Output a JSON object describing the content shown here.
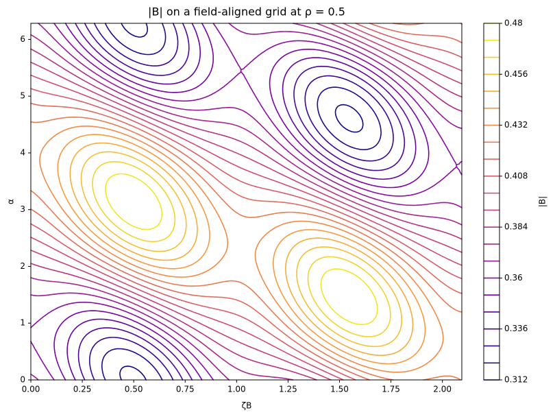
{
  "chart_data": {
    "type": "contour",
    "title": "|B| on a field-aligned grid at ρ = 0.5",
    "x_label": "ζB",
    "y_label": "α",
    "colorbar_label": "|B|",
    "xlim": [
      0,
      2.0944
    ],
    "ylim": [
      0,
      6.2832
    ],
    "xticks": [
      {
        "value": 0,
        "label": "0.00"
      },
      {
        "value": 0.25,
        "label": "0.25"
      },
      {
        "value": 0.5,
        "label": "0.50"
      },
      {
        "value": 0.75,
        "label": "0.75"
      },
      {
        "value": 1,
        "label": "1.00"
      },
      {
        "value": 1.25,
        "label": "1.25"
      },
      {
        "value": 1.5,
        "label": "1.50"
      },
      {
        "value": 1.75,
        "label": "1.75"
      },
      {
        "value": 2,
        "label": "2.00"
      }
    ],
    "yticks": [
      0,
      1,
      2,
      3,
      4,
      5,
      6
    ],
    "levels": [
      0.312,
      0.32,
      0.328,
      0.336,
      0.344,
      0.352,
      0.36,
      0.368,
      0.376,
      0.384,
      0.392,
      0.4,
      0.408,
      0.416,
      0.424,
      0.432,
      0.44,
      0.448,
      0.456,
      0.464,
      0.472,
      0.48
    ],
    "colorbar_ticks": [
      0.312,
      0.336,
      0.36,
      0.384,
      0.408,
      0.432,
      0.456,
      0.48
    ],
    "colormap": "plasma"
  }
}
